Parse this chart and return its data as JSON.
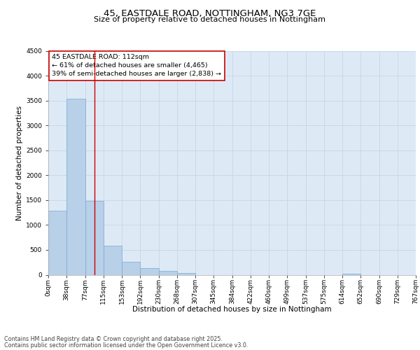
{
  "title_line1": "45, EASTDALE ROAD, NOTTINGHAM, NG3 7GE",
  "title_line2": "Size of property relative to detached houses in Nottingham",
  "xlabel": "Distribution of detached houses by size in Nottingham",
  "ylabel": "Number of detached properties",
  "bar_values": [
    1290,
    3540,
    1490,
    590,
    260,
    130,
    75,
    40,
    0,
    0,
    0,
    0,
    0,
    0,
    0,
    0,
    20,
    0,
    0,
    0
  ],
  "bin_labels": [
    "0sqm",
    "38sqm",
    "77sqm",
    "115sqm",
    "153sqm",
    "192sqm",
    "230sqm",
    "268sqm",
    "307sqm",
    "345sqm",
    "384sqm",
    "422sqm",
    "460sqm",
    "499sqm",
    "537sqm",
    "575sqm",
    "614sqm",
    "652sqm",
    "690sqm",
    "729sqm",
    "767sqm"
  ],
  "bar_color": "#b8d0e8",
  "bar_edge_color": "#7aaad0",
  "grid_color": "#c8d8ec",
  "background_color": "#ddeaf6",
  "vline_x": 2.0,
  "vline_color": "#cc0000",
  "annotation_text": "45 EASTDALE ROAD: 112sqm\n← 61% of detached houses are smaller (4,465)\n39% of semi-detached houses are larger (2,838) →",
  "annotation_box_color": "#ffffff",
  "annotation_box_edge_color": "#cc0000",
  "ylim": [
    0,
    4500
  ],
  "yticks": [
    0,
    500,
    1000,
    1500,
    2000,
    2500,
    3000,
    3500,
    4000,
    4500
  ],
  "footer_line1": "Contains HM Land Registry data © Crown copyright and database right 2025.",
  "footer_line2": "Contains public sector information licensed under the Open Government Licence v3.0.",
  "title_fontsize": 9.5,
  "subtitle_fontsize": 8.0,
  "axis_label_fontsize": 7.5,
  "tick_fontsize": 6.5,
  "annotation_fontsize": 6.8,
  "footer_fontsize": 5.8
}
